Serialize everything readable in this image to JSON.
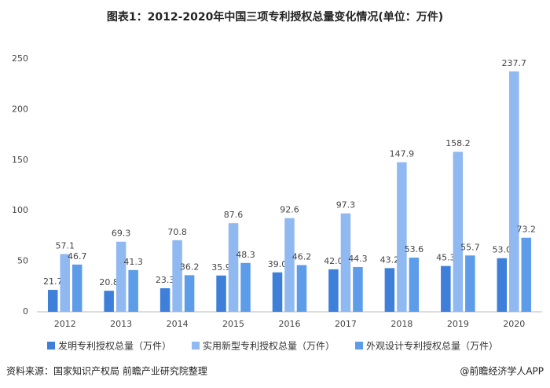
{
  "chart_data": {
    "type": "bar",
    "title": "图表1：2012-2020年中国三项专利授权总量变化情况(单位：万件)",
    "categories": [
      "2012",
      "2013",
      "2014",
      "2015",
      "2016",
      "2017",
      "2018",
      "2019",
      "2020"
    ],
    "series": [
      {
        "name": "发明专利授权总量（万件）",
        "color": "#3d7fd9",
        "values": [
          21.7,
          20.8,
          23.3,
          35.9,
          39.0,
          42.0,
          43.2,
          45.3,
          53.0
        ],
        "value_labels": [
          "21.7",
          "20.8",
          "23.3",
          "35.9",
          "39.0",
          "42.0",
          "43.2",
          "45.3",
          "53.0"
        ]
      },
      {
        "name": "实用新型专利授权总量（万件）",
        "color": "#8fb9f0",
        "values": [
          57.1,
          69.3,
          70.8,
          87.6,
          92.6,
          97.3,
          147.9,
          158.2,
          237.7
        ],
        "value_labels": [
          "57.1",
          "69.3",
          "70.8",
          "87.6",
          "92.6",
          "97.3",
          "147.9",
          "158.2",
          "237.7"
        ]
      },
      {
        "name": "外观设计专利授权总量（万件）",
        "color": "#5d9ce8",
        "values": [
          46.7,
          41.3,
          36.2,
          48.3,
          46.2,
          44.3,
          53.6,
          55.7,
          73.2
        ],
        "value_labels": [
          "46.7",
          "41.3",
          "36.2",
          "48.3",
          "46.2",
          "44.3",
          "53.6",
          "55.7",
          "73.2"
        ]
      }
    ],
    "ylim": [
      0,
      250
    ],
    "yticks": [
      0,
      50,
      100,
      150,
      200,
      250
    ],
    "grid": false,
    "source": "资料来源：国家知识产权局 前瞻产业研究院整理",
    "watermark": "@前瞻经济学人APP"
  }
}
